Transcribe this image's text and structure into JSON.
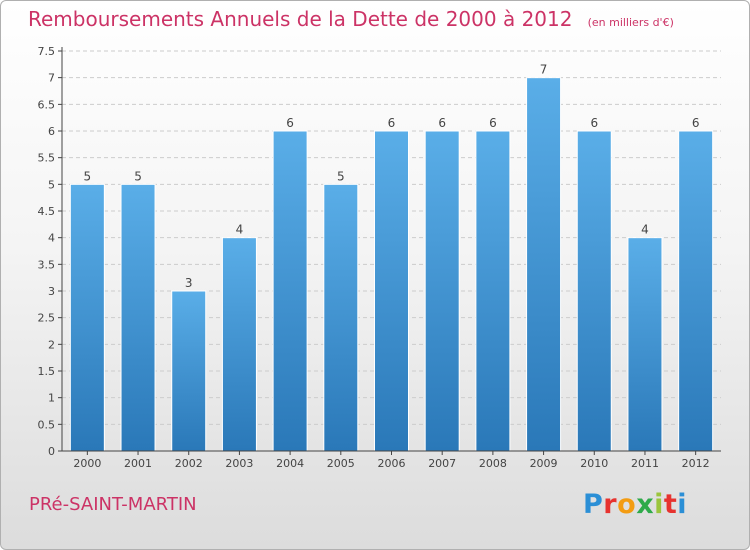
{
  "title": "Remboursements Annuels de la Dette de 2000 à 2012",
  "unit_note": "(en milliers d'€)",
  "location": "PRé-SAINT-MARTIN",
  "brand": "Proxiti",
  "colors": {
    "title": "#cc3366",
    "bar_top": "#5aaee8",
    "bar_bottom": "#2a78b8",
    "axis": "#444444",
    "grid": "#cccccc"
  },
  "chart_data": {
    "type": "bar",
    "title": "Remboursements Annuels de la Dette de 2000 à 2012",
    "xlabel": "",
    "ylabel": "",
    "categories": [
      "2000",
      "2001",
      "2002",
      "2003",
      "2004",
      "2005",
      "2006",
      "2007",
      "2008",
      "2009",
      "2010",
      "2011",
      "2012"
    ],
    "values": [
      5,
      5,
      3,
      4,
      6,
      5,
      6,
      6,
      6,
      7,
      6,
      4,
      6
    ],
    "data_labels": [
      "5",
      "5",
      "3",
      "4",
      "6",
      "5",
      "6",
      "6",
      "6",
      "7",
      "6",
      "4",
      "6"
    ],
    "ylim": [
      0,
      7.5
    ],
    "y_ticks": [
      "0",
      "0.5",
      "1",
      "1.5",
      "2",
      "2.5",
      "3",
      "3.5",
      "4",
      "4.5",
      "5",
      "5.5",
      "6",
      "6.5",
      "7",
      "7.5"
    ],
    "grid": true,
    "legend": "none"
  }
}
